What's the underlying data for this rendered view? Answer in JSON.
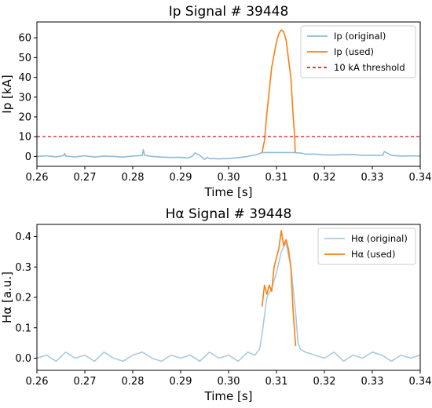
{
  "chart_data": [
    {
      "type": "line",
      "title": "Ip Signal # 39448",
      "xlabel": "Time [s]",
      "ylabel": "Ip [kA]",
      "xlim": [
        0.26,
        0.34
      ],
      "ylim": [
        -5,
        68
      ],
      "xticks": [
        0.26,
        0.27,
        0.28,
        0.29,
        0.3,
        0.31,
        0.32,
        0.33,
        0.34
      ],
      "xtick_labels": [
        "0.26",
        "0.27",
        "0.28",
        "0.29",
        "0.30",
        "0.31",
        "0.32",
        "0.33",
        "0.34"
      ],
      "yticks": [
        0,
        10,
        20,
        30,
        40,
        50,
        60
      ],
      "ytick_labels": [
        "0",
        "10",
        "20",
        "30",
        "40",
        "50",
        "60"
      ],
      "grid": false,
      "legend_position": "top-right",
      "series": [
        {
          "name": "Ip (original)",
          "color": "#8fbbd9",
          "x": [
            0.26,
            0.262,
            0.264,
            0.2655,
            0.2658,
            0.266,
            0.268,
            0.27,
            0.272,
            0.274,
            0.276,
            0.278,
            0.28,
            0.282,
            0.2822,
            0.2825,
            0.284,
            0.286,
            0.288,
            0.29,
            0.2915,
            0.2925,
            0.293,
            0.294,
            0.295,
            0.2955,
            0.296,
            0.298,
            0.3,
            0.302,
            0.304,
            0.306,
            0.307,
            0.314,
            0.3142,
            0.315,
            0.316,
            0.318,
            0.32,
            0.322,
            0.324,
            0.326,
            0.328,
            0.33,
            0.3322,
            0.3325,
            0.334,
            0.336,
            0.338,
            0.34
          ],
          "y": [
            0,
            0.3,
            -0.2,
            0.4,
            1.5,
            0.2,
            -0.2,
            0.3,
            -0.3,
            0.2,
            0,
            -0.3,
            0.2,
            0.5,
            3.5,
            0.5,
            0,
            -0.3,
            -0.5,
            -0.4,
            -0.8,
            0.2,
            1.8,
            0.5,
            -1.5,
            -0.5,
            -1,
            -1.2,
            -1,
            -0.6,
            0,
            1,
            2,
            2,
            1.8,
            1.8,
            1.2,
            1.2,
            0.8,
            0.7,
            0.9,
            1,
            0.6,
            0.5,
            0.6,
            2.5,
            0.5,
            0.2,
            0.3,
            0.2
          ]
        },
        {
          "name": "Ip (used)",
          "color": "#ff7f0e",
          "x": [
            0.307,
            0.3075,
            0.308,
            0.309,
            0.31,
            0.3105,
            0.311,
            0.3115,
            0.312,
            0.313,
            0.3135,
            0.3138,
            0.3139
          ],
          "y": [
            2,
            8,
            22,
            45,
            58,
            62,
            64,
            63,
            59,
            40,
            20,
            10,
            2
          ]
        },
        {
          "name": "10 kA threshold",
          "color": "#d62728",
          "dashed": true,
          "x": [
            0.26,
            0.34
          ],
          "y": [
            10,
            10
          ]
        }
      ]
    },
    {
      "type": "line",
      "title": "Hα Signal # 39448",
      "xlabel": "Time [s]",
      "ylabel": "Hα [a.u.]",
      "xlim": [
        0.26,
        0.34
      ],
      "ylim": [
        -0.04,
        0.44
      ],
      "xticks": [
        0.26,
        0.27,
        0.28,
        0.29,
        0.3,
        0.31,
        0.32,
        0.33,
        0.34
      ],
      "xtick_labels": [
        "0.26",
        "0.27",
        "0.28",
        "0.29",
        "0.30",
        "0.31",
        "0.32",
        "0.33",
        "0.34"
      ],
      "yticks": [
        0.0,
        0.1,
        0.2,
        0.3,
        0.4
      ],
      "ytick_labels": [
        "0.0",
        "0.1",
        "0.2",
        "0.3",
        "0.4"
      ],
      "grid": false,
      "legend_position": "top-right",
      "series": [
        {
          "name": "Hα (original)",
          "color": "#aac9e2",
          "x": [
            0.26,
            0.262,
            0.264,
            0.266,
            0.268,
            0.27,
            0.272,
            0.274,
            0.276,
            0.278,
            0.28,
            0.282,
            0.284,
            0.286,
            0.288,
            0.29,
            0.292,
            0.294,
            0.296,
            0.298,
            0.3,
            0.302,
            0.304,
            0.3055,
            0.3065,
            0.307,
            0.3075,
            0.308,
            0.309,
            0.31,
            0.311,
            0.312,
            0.313,
            0.314,
            0.3145,
            0.315,
            0.316,
            0.318,
            0.32,
            0.322,
            0.324,
            0.326,
            0.328,
            0.33,
            0.332,
            0.334,
            0.336,
            0.338,
            0.34
          ],
          "y": [
            0,
            0.01,
            -0.01,
            0.02,
            0,
            0.01,
            -0.01,
            0.02,
            0,
            -0.01,
            0.01,
            0.02,
            0,
            -0.01,
            0.01,
            0,
            0.01,
            -0.01,
            0.02,
            0,
            0.01,
            -0.01,
            0.02,
            0.01,
            0.03,
            0.08,
            0.14,
            0.2,
            0.23,
            0.28,
            0.35,
            0.38,
            0.3,
            0.15,
            0.05,
            0.03,
            0.02,
            0.01,
            0,
            0.02,
            -0.01,
            0.01,
            0,
            0.02,
            0.01,
            -0.01,
            0.01,
            0,
            0.01
          ]
        },
        {
          "name": "Hα (used)",
          "color": "#ff7f0e",
          "x": [
            0.307,
            0.3075,
            0.308,
            0.3085,
            0.309,
            0.3095,
            0.31,
            0.3105,
            0.311,
            0.3115,
            0.312,
            0.3125,
            0.313,
            0.3135,
            0.314
          ],
          "y": [
            0.17,
            0.24,
            0.21,
            0.24,
            0.22,
            0.3,
            0.33,
            0.36,
            0.42,
            0.37,
            0.39,
            0.36,
            0.3,
            0.15,
            0.04
          ]
        }
      ]
    }
  ]
}
